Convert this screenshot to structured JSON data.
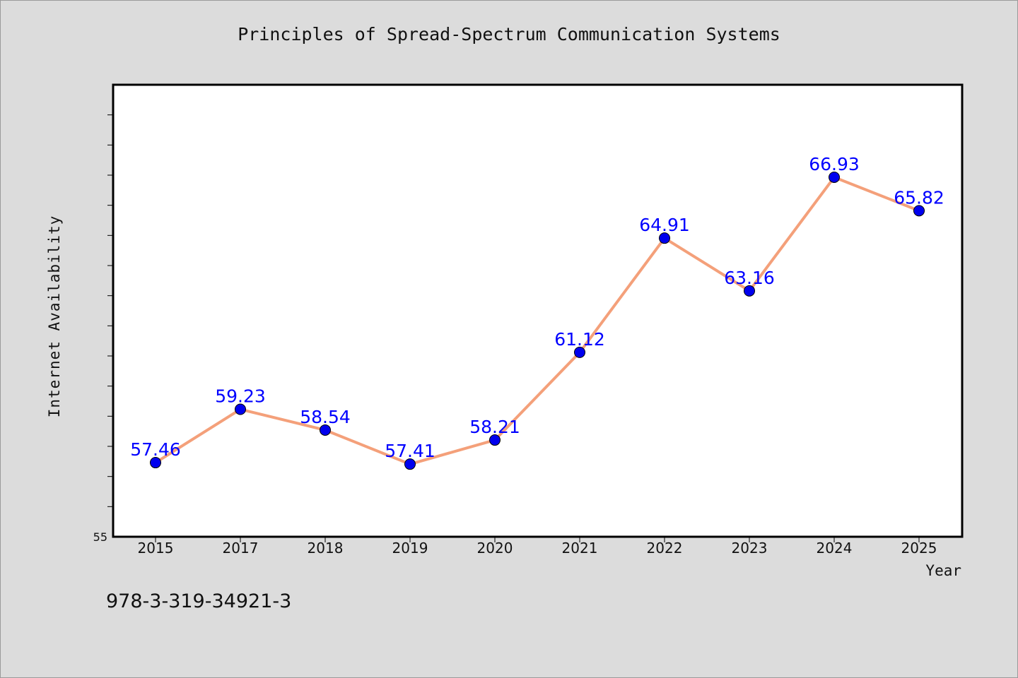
{
  "page": {
    "background": "#dcdcdc",
    "footer_text": "978-3-319-34921-3"
  },
  "chart_data": {
    "type": "line",
    "title": "Principles of Spread-Spectrum Communication Systems",
    "xlabel": "Year",
    "ylabel": "Internet Availability",
    "categories": [
      "2015",
      "2017",
      "2018",
      "2019",
      "2020",
      "2021",
      "2022",
      "2023",
      "2024",
      "2025"
    ],
    "series": [
      {
        "values": [
          57.46,
          59.23,
          58.54,
          57.41,
          58.21,
          61.12,
          64.91,
          63.16,
          66.93,
          65.82
        ],
        "data_labels": [
          "57.46",
          "59.23",
          "58.54",
          "57.41",
          "58.21",
          "61.12",
          "64.91",
          "63.16",
          "66.93",
          "65.82"
        ],
        "line_color": "#f4a07a",
        "marker_color": "#0000ee",
        "label_color": "#0000ff"
      }
    ],
    "ylim": [
      55,
      70
    ],
    "y_tick_labels": [
      "55"
    ],
    "y_minor_tick_step": 1,
    "grid": false,
    "legend": "none"
  }
}
